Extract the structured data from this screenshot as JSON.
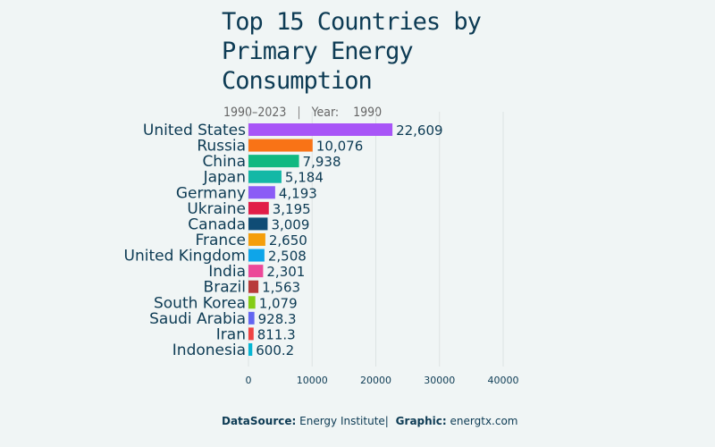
{
  "chart_data": {
    "type": "bar",
    "orientation": "horizontal",
    "title": "Top 15 Countries by Primary Energy Consumption",
    "subtitle": {
      "range": "1990–2023",
      "year_label": "Year:",
      "year": "1990"
    },
    "categories": [
      "United States",
      "Russia",
      "China",
      "Japan",
      "Germany",
      "Ukraine",
      "Canada",
      "France",
      "United Kingdom",
      "India",
      "Brazil",
      "South Korea",
      "Saudi Arabia",
      "Iran",
      "Indonesia"
    ],
    "values": [
      22609,
      10076,
      7938,
      5184,
      4193,
      3195,
      3009,
      2650,
      2508,
      2301,
      1563,
      1079,
      928.3,
      811.3,
      600.2
    ],
    "value_labels": [
      "22,609",
      "10,076",
      "7,938",
      "5,184",
      "4,193",
      "3,195",
      "3,009",
      "2,650",
      "2,508",
      "2,301",
      "1,563",
      "1,079",
      "928.3",
      "811.3",
      "600.2"
    ],
    "colors": [
      "#a855f7",
      "#f97316",
      "#10b981",
      "#14b8a6",
      "#8b5cf6",
      "#e11d48",
      "#0f4c75",
      "#f59e0b",
      "#0ea5e9",
      "#ec4899",
      "#b83a3a",
      "#84cc16",
      "#6366f1",
      "#ef4444",
      "#06b6d4"
    ],
    "xlim": [
      0,
      40000
    ],
    "xticks": [
      "0",
      "10000",
      "20000",
      "30000",
      "40000"
    ],
    "grid": true
  },
  "footer": {
    "source_label": "DataSource:",
    "source": "Energy Institute",
    "sep": "|",
    "graphic_label": "Graphic:",
    "graphic": "energtx.com"
  }
}
